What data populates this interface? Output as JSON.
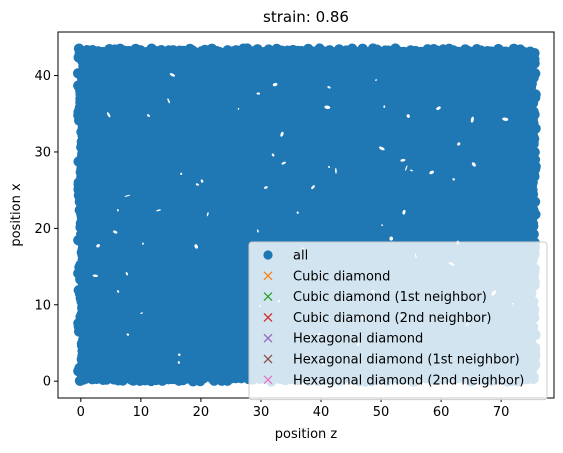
{
  "chart_data": {
    "type": "scatter",
    "title": "strain: 0.86",
    "xlabel": "position z",
    "ylabel": "position x",
    "xlim": [
      -3.8,
      78.8
    ],
    "ylim": [
      -2.2,
      45.7
    ],
    "xticks": [
      0,
      10,
      20,
      30,
      40,
      50,
      60,
      70
    ],
    "yticks": [
      0,
      10,
      20,
      30,
      40
    ],
    "grid": false,
    "legend_position": "lower-right",
    "point_cloud": {
      "x_range": [
        0,
        75.3
      ],
      "y_range": [
        0.2,
        43.3
      ],
      "note_visible_gaps": "few small white voids scattered throughout"
    },
    "series": [
      {
        "name": "all",
        "marker": "circle",
        "color": "#1f77b4",
        "values": "dense uniform cloud covering x 0–75, y 0–43"
      },
      {
        "name": "Cubic diamond",
        "marker": "x",
        "color": "#ff7f0e",
        "values": []
      },
      {
        "name": "Cubic diamond (1st neighbor)",
        "marker": "x",
        "color": "#2ca02c",
        "values": []
      },
      {
        "name": "Cubic diamond (2nd neighbor)",
        "marker": "x",
        "color": "#d62728",
        "values": []
      },
      {
        "name": "Hexagonal diamond",
        "marker": "x",
        "color": "#9467bd",
        "values": []
      },
      {
        "name": "Hexagonal diamond (1st neighbor)",
        "marker": "x",
        "color": "#8c564b",
        "values": []
      },
      {
        "name": "Hexagonal diamond (2nd neighbor)",
        "marker": "x",
        "color": "#e377c2",
        "values": []
      }
    ]
  }
}
